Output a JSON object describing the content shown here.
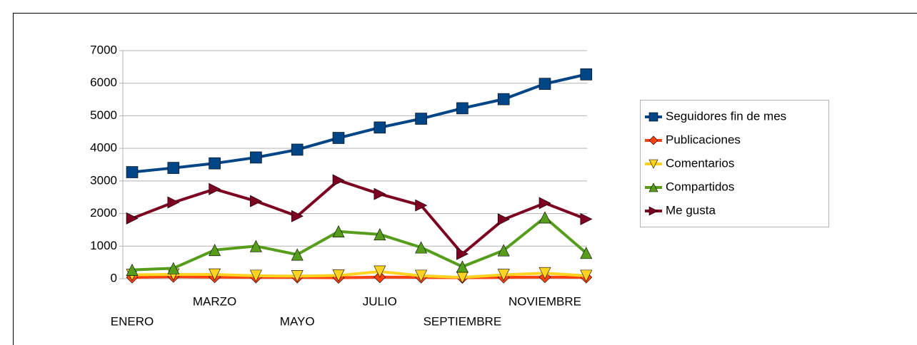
{
  "chart_data": {
    "type": "line",
    "categories": [
      "ENERO",
      null,
      "MARZO",
      null,
      "MAYO",
      null,
      "JULIO",
      null,
      "SEPTIEMBRE",
      null,
      "NOVIEMBRE",
      null
    ],
    "series": [
      {
        "name": "Seguidores fin de mes",
        "color": "#004586",
        "marker": "square",
        "values": [
          3270,
          3400,
          3540,
          3720,
          3960,
          4320,
          4640,
          4910,
          5230,
          5510,
          5980,
          6270
        ]
      },
      {
        "name": "Publicaciones",
        "color": "#ff420e",
        "marker": "diamond",
        "values": [
          40,
          60,
          50,
          40,
          40,
          30,
          50,
          40,
          30,
          40,
          50,
          40
        ]
      },
      {
        "name": "Comentarios",
        "color": "#ffd320",
        "marker": "triangle-down",
        "values": [
          120,
          130,
          130,
          90,
          80,
          100,
          220,
          90,
          40,
          120,
          170,
          90
        ]
      },
      {
        "name": "Compartidos",
        "color": "#579d1c",
        "marker": "triangle-up",
        "values": [
          270,
          320,
          880,
          1000,
          740,
          1450,
          1360,
          960,
          370,
          870,
          1880,
          790
        ]
      },
      {
        "name": "Me gusta",
        "color": "#7e0021",
        "marker": "triangle-right",
        "values": [
          1850,
          2340,
          2750,
          2380,
          1920,
          3020,
          2600,
          2250,
          760,
          1820,
          2320,
          1830
        ]
      }
    ],
    "ylim": [
      0,
      7000
    ],
    "yticks": [
      0,
      1000,
      2000,
      3000,
      4000,
      5000,
      6000,
      7000
    ],
    "grid": true,
    "legend": "right"
  }
}
